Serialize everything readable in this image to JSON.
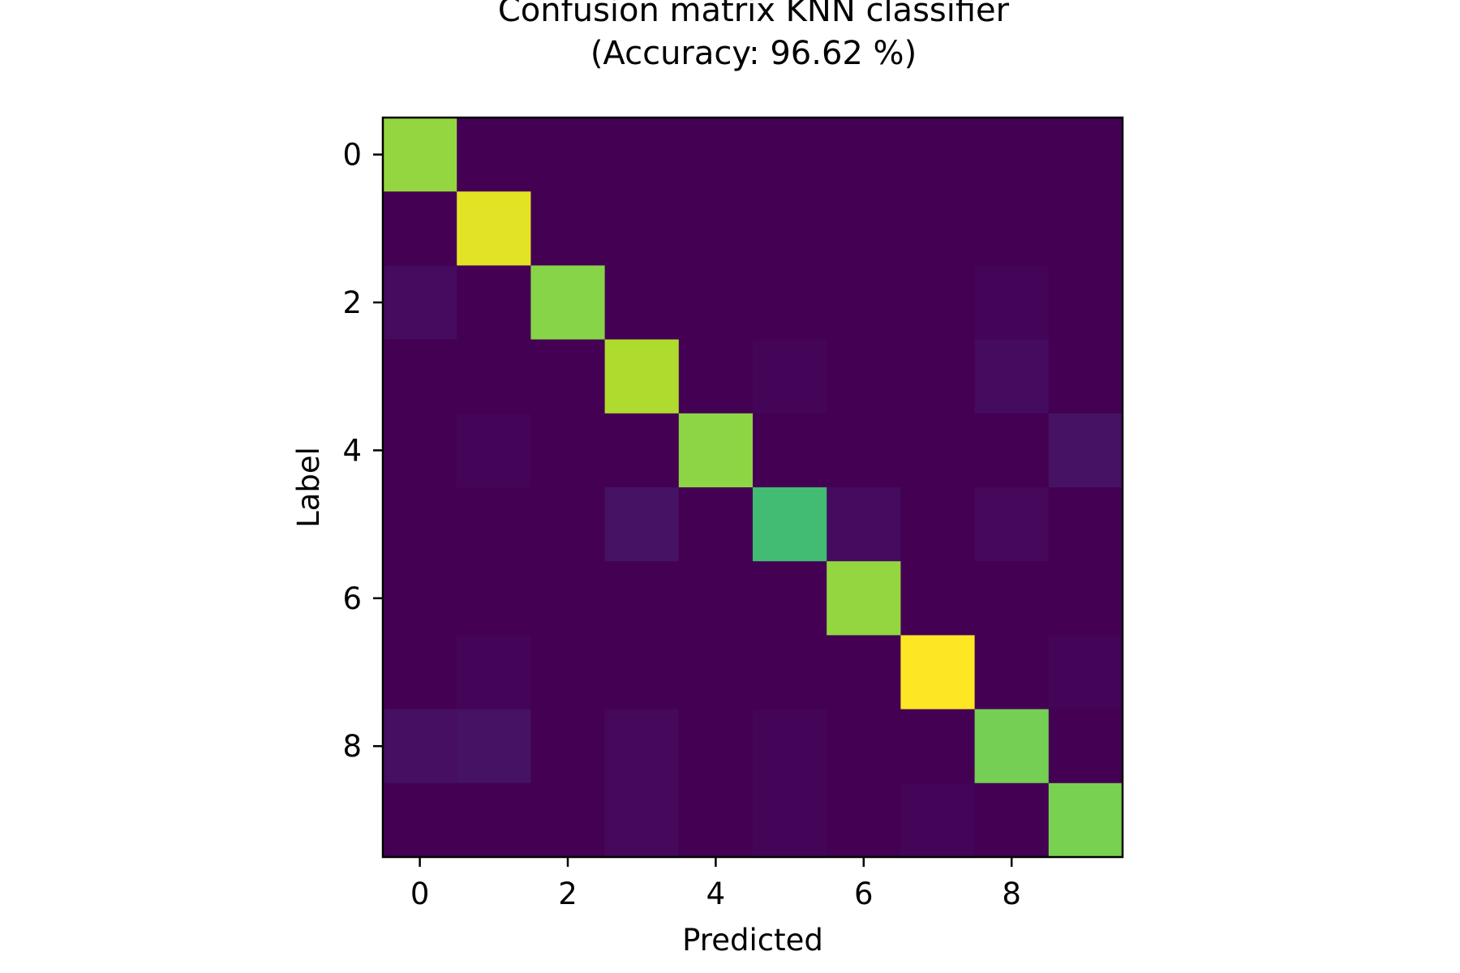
{
  "chart_data": {
    "type": "heatmap",
    "title": "Confusion matrix KNN classifier",
    "subtitle": "(Accuracy: 96.62 %)",
    "xlabel": "Predicted",
    "ylabel": "Label",
    "x_categories": [
      0,
      1,
      2,
      3,
      4,
      5,
      6,
      7,
      8,
      9
    ],
    "y_categories": [
      0,
      1,
      2,
      3,
      4,
      5,
      6,
      7,
      8,
      9
    ],
    "x_ticks": [
      "0",
      "2",
      "4",
      "6",
      "8"
    ],
    "y_ticks": [
      "0",
      "2",
      "4",
      "6",
      "8"
    ],
    "colormap": "viridis",
    "value_range": [
      0,
      1
    ],
    "values": [
      [
        0.84,
        0.0,
        0.0,
        0.0,
        0.0,
        0.0,
        0.0,
        0.0,
        0.0,
        0.0
      ],
      [
        0.0,
        0.96,
        0.0,
        0.0,
        0.0,
        0.0,
        0.0,
        0.0,
        0.0,
        0.0
      ],
      [
        0.03,
        0.0,
        0.82,
        0.0,
        0.0,
        0.0,
        0.0,
        0.0,
        0.01,
        0.0
      ],
      [
        0.0,
        0.0,
        0.0,
        0.88,
        0.0,
        0.01,
        0.0,
        0.0,
        0.03,
        0.0
      ],
      [
        0.0,
        0.01,
        0.0,
        0.0,
        0.83,
        0.0,
        0.0,
        0.0,
        0.0,
        0.05
      ],
      [
        0.0,
        0.0,
        0.0,
        0.05,
        0.0,
        0.69,
        0.03,
        0.0,
        0.02,
        0.0
      ],
      [
        0.0,
        0.0,
        0.0,
        0.0,
        0.0,
        0.0,
        0.84,
        0.0,
        0.0,
        0.0
      ],
      [
        0.0,
        0.01,
        0.0,
        0.0,
        0.0,
        0.0,
        0.0,
        1.0,
        0.0,
        0.01
      ],
      [
        0.04,
        0.05,
        0.0,
        0.02,
        0.0,
        0.01,
        0.0,
        0.0,
        0.79,
        0.0
      ],
      [
        0.0,
        0.0,
        0.0,
        0.02,
        0.0,
        0.01,
        0.0,
        0.01,
        0.0,
        0.8
      ]
    ]
  }
}
